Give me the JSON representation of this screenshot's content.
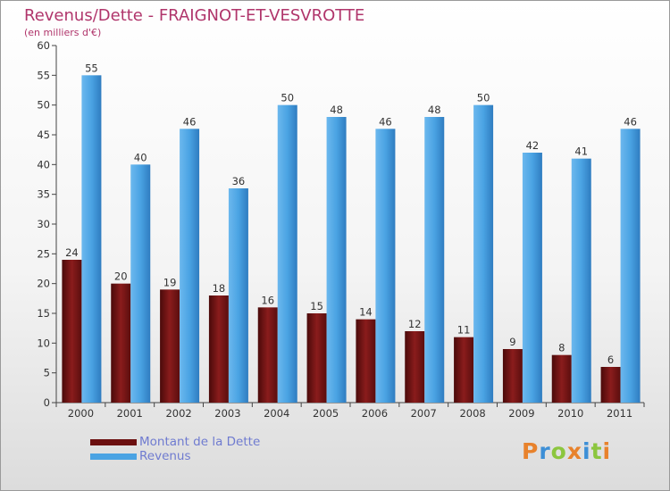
{
  "header": {
    "title": "Revenus/Dette - FRAIGNOT-ET-VESVROTTE",
    "subtitle": "(en milliers d'€)"
  },
  "colors": {
    "dette": "#7a1515",
    "revenus": "#4aa3e3",
    "title": "#b0356b"
  },
  "chart_data": {
    "type": "bar",
    "title": "Revenus/Dette - FRAIGNOT-ET-VESVROTTE",
    "subtitle": "(en milliers d'€)",
    "categories": [
      "2000",
      "2001",
      "2002",
      "2003",
      "2004",
      "2005",
      "2006",
      "2007",
      "2008",
      "2009",
      "2010",
      "2011"
    ],
    "series": [
      {
        "name": "Montant de la Dette",
        "values": [
          24,
          20,
          19,
          18,
          16,
          15,
          14,
          12,
          11,
          9,
          8,
          6
        ]
      },
      {
        "name": "Revenus",
        "values": [
          55,
          40,
          46,
          36,
          50,
          48,
          46,
          48,
          50,
          42,
          41,
          46
        ]
      }
    ],
    "ylim": [
      0,
      60
    ],
    "yticks": [
      0,
      5,
      10,
      15,
      20,
      25,
      30,
      35,
      40,
      45,
      50,
      55,
      60
    ],
    "grid": false,
    "legend": "bottom-left",
    "data_labels": true
  },
  "legend": {
    "items": [
      {
        "label": "Montant de la Dette"
      },
      {
        "label": "Revenus"
      }
    ]
  },
  "logo": {
    "text": "Proxiti",
    "letters": [
      "P",
      "r",
      "o",
      "x",
      "i",
      "t",
      "i"
    ]
  }
}
